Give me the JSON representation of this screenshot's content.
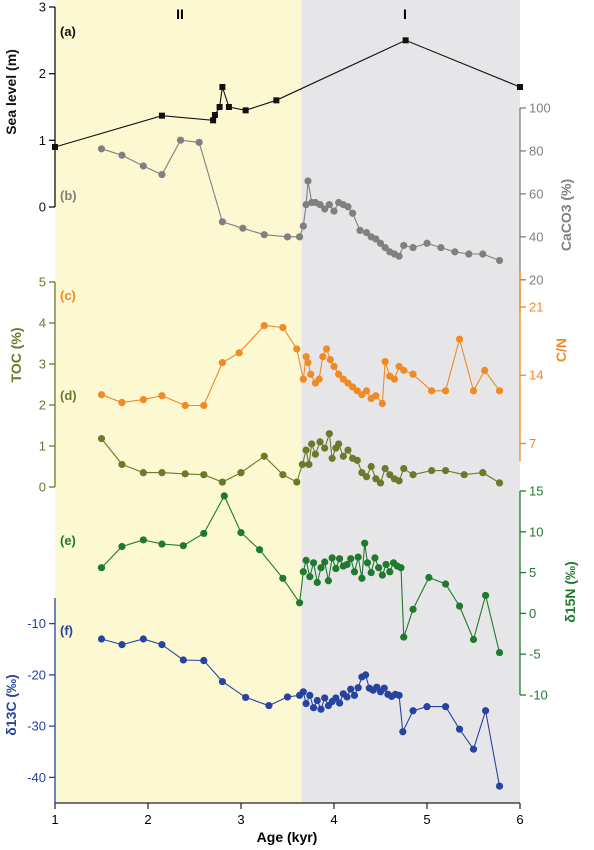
{
  "colors": {
    "zone_II": "#fbf8d2",
    "zone_I": "#e6e6e9",
    "sea_level": "#111111",
    "caco3": "#808080",
    "toc": "#6b7a2a",
    "cn": "#f08a24",
    "d15n": "#1f7a2e",
    "d13c": "#2743a0"
  },
  "chart_data": {
    "type": "line",
    "xlabel": "Age (kyr)",
    "xlim": [
      1,
      6
    ],
    "xticks": [
      "1",
      "2",
      "3",
      "4",
      "5",
      "6"
    ],
    "zones": [
      {
        "label": "II",
        "range": [
          1,
          3.65
        ]
      },
      {
        "label": "I",
        "range": [
          3.65,
          6
        ]
      }
    ],
    "panels": [
      {
        "id": "a",
        "label": "(a)",
        "ylabel": "Sea level (m)",
        "axis_side": "left",
        "ylim": [
          0,
          3
        ],
        "ticks": [
          0,
          1,
          2,
          3
        ],
        "tick_labels": [
          "0",
          "1",
          "2",
          "3"
        ],
        "marker": "square",
        "points": [
          [
            1.0,
            0.9
          ],
          [
            2.15,
            1.37
          ],
          [
            2.7,
            1.3
          ],
          [
            2.72,
            1.38
          ],
          [
            2.77,
            1.5
          ],
          [
            2.8,
            1.8
          ],
          [
            2.87,
            1.5
          ],
          [
            3.05,
            1.45
          ],
          [
            3.38,
            1.6
          ],
          [
            4.77,
            2.5
          ],
          [
            6.0,
            1.8
          ]
        ]
      },
      {
        "id": "b",
        "label": "(b)",
        "ylabel": "CaCO3 (%)",
        "axis_side": "right",
        "ylim": [
          5,
          100
        ],
        "ticks": [
          20,
          40,
          60,
          80,
          100
        ],
        "tick_labels": [
          "20",
          "40",
          "60",
          "80",
          "100"
        ],
        "marker": "circle",
        "points": [
          [
            1.5,
            81
          ],
          [
            1.72,
            78
          ],
          [
            1.95,
            73
          ],
          [
            2.15,
            69
          ],
          [
            2.35,
            85
          ],
          [
            2.55,
            84
          ],
          [
            2.8,
            47
          ],
          [
            3.02,
            44
          ],
          [
            3.25,
            41
          ],
          [
            3.5,
            40
          ],
          [
            3.63,
            40
          ],
          [
            3.67,
            45
          ],
          [
            3.7,
            55
          ],
          [
            3.72,
            66
          ],
          [
            3.76,
            56
          ],
          [
            3.8,
            56
          ],
          [
            3.85,
            55
          ],
          [
            3.9,
            53
          ],
          [
            3.95,
            55
          ],
          [
            4.0,
            52
          ],
          [
            4.05,
            56
          ],
          [
            4.1,
            55
          ],
          [
            4.15,
            54
          ],
          [
            4.2,
            51
          ],
          [
            4.28,
            43
          ],
          [
            4.35,
            42
          ],
          [
            4.4,
            40
          ],
          [
            4.45,
            39
          ],
          [
            4.5,
            37
          ],
          [
            4.55,
            35
          ],
          [
            4.6,
            33
          ],
          [
            4.65,
            32
          ],
          [
            4.7,
            31
          ],
          [
            4.75,
            36
          ],
          [
            4.85,
            35
          ],
          [
            5.0,
            37
          ],
          [
            5.15,
            35
          ],
          [
            5.3,
            33
          ],
          [
            5.45,
            32
          ],
          [
            5.6,
            32
          ],
          [
            5.78,
            29
          ]
        ]
      },
      {
        "id": "c",
        "label": "(c)",
        "ylabel": "C/N",
        "axis_side": "right",
        "ylim": [
          5.2,
          24.8
        ],
        "ticks": [
          7,
          14,
          21
        ],
        "tick_labels": [
          "7",
          "14",
          "21"
        ],
        "marker": "circle",
        "points": [
          [
            1.5,
            12.0
          ],
          [
            1.72,
            11.2
          ],
          [
            1.95,
            11.5
          ],
          [
            2.15,
            11.9
          ],
          [
            2.4,
            10.9
          ],
          [
            2.6,
            10.9
          ],
          [
            2.8,
            15.3
          ],
          [
            2.98,
            16.3
          ],
          [
            3.25,
            19.1
          ],
          [
            3.45,
            18.9
          ],
          [
            3.6,
            16.7
          ],
          [
            3.67,
            13.6
          ],
          [
            3.7,
            15.9
          ],
          [
            3.72,
            15.3
          ],
          [
            3.75,
            14.1
          ],
          [
            3.8,
            13.2
          ],
          [
            3.84,
            13.6
          ],
          [
            3.88,
            15.9
          ],
          [
            3.92,
            16.7
          ],
          [
            3.96,
            15.6
          ],
          [
            4.0,
            14.9
          ],
          [
            4.05,
            14.1
          ],
          [
            4.1,
            13.6
          ],
          [
            4.15,
            13.2
          ],
          [
            4.2,
            12.8
          ],
          [
            4.25,
            12.4
          ],
          [
            4.3,
            12.0
          ],
          [
            4.35,
            12.4
          ],
          [
            4.4,
            11.6
          ],
          [
            4.45,
            11.9
          ],
          [
            4.52,
            11.1
          ],
          [
            4.55,
            15.4
          ],
          [
            4.6,
            13.9
          ],
          [
            4.65,
            13.6
          ],
          [
            4.7,
            14.9
          ],
          [
            4.75,
            14.5
          ],
          [
            4.85,
            14.1
          ],
          [
            5.05,
            12.4
          ],
          [
            5.2,
            12.4
          ],
          [
            5.35,
            17.7
          ],
          [
            5.5,
            12.4
          ],
          [
            5.62,
            14.5
          ],
          [
            5.78,
            12.4
          ]
        ]
      },
      {
        "id": "d",
        "label": "(d)",
        "ylabel": "TOC (%)",
        "axis_side": "left",
        "ylim": [
          0,
          5
        ],
        "ticks": [
          0,
          1,
          2,
          3,
          4,
          5
        ],
        "tick_labels": [
          "0",
          "1",
          "2",
          "3",
          "4",
          "5"
        ],
        "marker": "circle",
        "points": [
          [
            1.5,
            1.18
          ],
          [
            1.72,
            0.55
          ],
          [
            1.95,
            0.35
          ],
          [
            2.15,
            0.35
          ],
          [
            2.4,
            0.32
          ],
          [
            2.6,
            0.3
          ],
          [
            2.8,
            0.12
          ],
          [
            3.0,
            0.35
          ],
          [
            3.25,
            0.75
          ],
          [
            3.45,
            0.3
          ],
          [
            3.6,
            0.12
          ],
          [
            3.66,
            0.55
          ],
          [
            3.7,
            0.9
          ],
          [
            3.73,
            0.55
          ],
          [
            3.76,
            1.05
          ],
          [
            3.8,
            0.8
          ],
          [
            3.85,
            1.1
          ],
          [
            3.9,
            0.95
          ],
          [
            3.95,
            1.3
          ],
          [
            3.98,
            0.7
          ],
          [
            4.02,
            0.95
          ],
          [
            4.05,
            1.05
          ],
          [
            4.1,
            0.75
          ],
          [
            4.15,
            0.9
          ],
          [
            4.2,
            0.7
          ],
          [
            4.25,
            0.65
          ],
          [
            4.3,
            0.35
          ],
          [
            4.35,
            0.25
          ],
          [
            4.4,
            0.5
          ],
          [
            4.45,
            0.2
          ],
          [
            4.5,
            0.1
          ],
          [
            4.55,
            0.45
          ],
          [
            4.6,
            0.3
          ],
          [
            4.65,
            0.2
          ],
          [
            4.7,
            0.15
          ],
          [
            4.75,
            0.45
          ],
          [
            4.85,
            0.3
          ],
          [
            5.05,
            0.4
          ],
          [
            5.2,
            0.4
          ],
          [
            5.4,
            0.3
          ],
          [
            5.6,
            0.35
          ],
          [
            5.78,
            0.1
          ]
        ]
      },
      {
        "id": "e",
        "label": "(e)",
        "ylabel": "δ15N (‰)",
        "axis_side": "right",
        "ylim": [
          -10,
          15
        ],
        "ticks": [
          -10,
          -5,
          0,
          5,
          10,
          15
        ],
        "tick_labels": [
          "-10",
          "-5",
          "0",
          "5",
          "10",
          "15"
        ],
        "marker": "circle",
        "points": [
          [
            1.5,
            5.6
          ],
          [
            1.72,
            8.2
          ],
          [
            1.95,
            9.0
          ],
          [
            2.15,
            8.5
          ],
          [
            2.38,
            8.3
          ],
          [
            2.6,
            9.8
          ],
          [
            2.82,
            14.4
          ],
          [
            3.0,
            9.9
          ],
          [
            3.2,
            7.8
          ],
          [
            3.45,
            4.3
          ],
          [
            3.63,
            1.3
          ],
          [
            3.67,
            5.1
          ],
          [
            3.7,
            6.5
          ],
          [
            3.74,
            4.5
          ],
          [
            3.78,
            6.2
          ],
          [
            3.82,
            3.8
          ],
          [
            3.86,
            5.6
          ],
          [
            3.9,
            6.3
          ],
          [
            3.94,
            4.0
          ],
          [
            3.98,
            6.8
          ],
          [
            4.02,
            5.5
          ],
          [
            4.06,
            6.7
          ],
          [
            4.1,
            5.8
          ],
          [
            4.14,
            6.0
          ],
          [
            4.18,
            6.7
          ],
          [
            4.22,
            5.1
          ],
          [
            4.26,
            6.9
          ],
          [
            4.3,
            4.3
          ],
          [
            4.33,
            8.6
          ],
          [
            4.36,
            6.2
          ],
          [
            4.4,
            5.0
          ],
          [
            4.44,
            6.8
          ],
          [
            4.48,
            5.6
          ],
          [
            4.52,
            4.7
          ],
          [
            4.56,
            6.0
          ],
          [
            4.6,
            5.1
          ],
          [
            4.64,
            6.2
          ],
          [
            4.68,
            5.8
          ],
          [
            4.72,
            5.6
          ],
          [
            4.75,
            -2.9
          ],
          [
            4.85,
            0.5
          ],
          [
            5.02,
            4.4
          ],
          [
            5.2,
            3.6
          ],
          [
            5.35,
            0.9
          ],
          [
            5.5,
            -3.2
          ],
          [
            5.63,
            2.2
          ],
          [
            5.78,
            -4.8
          ]
        ]
      },
      {
        "id": "f",
        "label": "(f)",
        "ylabel": "δ13C (‰)",
        "axis_side": "left",
        "ylim": [
          -45,
          -5
        ],
        "ticks": [
          -10,
          -20,
          -30,
          -40
        ],
        "tick_labels": [
          "-10",
          "-20",
          "-30",
          "-40"
        ],
        "marker": "circle",
        "points": [
          [
            1.5,
            -13.0
          ],
          [
            1.72,
            -14.1
          ],
          [
            1.95,
            -13.0
          ],
          [
            2.15,
            -14.1
          ],
          [
            2.38,
            -17.1
          ],
          [
            2.6,
            -17.2
          ],
          [
            2.8,
            -21.3
          ],
          [
            3.05,
            -24.4
          ],
          [
            3.3,
            -26.0
          ],
          [
            3.5,
            -24.3
          ],
          [
            3.63,
            -24.0
          ],
          [
            3.67,
            -23.3
          ],
          [
            3.7,
            -25.6
          ],
          [
            3.74,
            -24.0
          ],
          [
            3.78,
            -26.4
          ],
          [
            3.82,
            -25.0
          ],
          [
            3.86,
            -26.7
          ],
          [
            3.9,
            -24.5
          ],
          [
            3.94,
            -26.0
          ],
          [
            3.98,
            -25.2
          ],
          [
            4.02,
            -24.5
          ],
          [
            4.06,
            -25.5
          ],
          [
            4.1,
            -23.7
          ],
          [
            4.14,
            -24.3
          ],
          [
            4.18,
            -22.8
          ],
          [
            4.22,
            -24.0
          ],
          [
            4.26,
            -22.5
          ],
          [
            4.3,
            -20.4
          ],
          [
            4.34,
            -20.0
          ],
          [
            4.38,
            -22.6
          ],
          [
            4.42,
            -23.0
          ],
          [
            4.46,
            -22.4
          ],
          [
            4.5,
            -23.3
          ],
          [
            4.54,
            -22.6
          ],
          [
            4.58,
            -23.8
          ],
          [
            4.62,
            -24.2
          ],
          [
            4.66,
            -23.8
          ],
          [
            4.7,
            -24.0
          ],
          [
            4.74,
            -31.1
          ],
          [
            4.85,
            -27.0
          ],
          [
            5.0,
            -26.2
          ],
          [
            5.2,
            -26.2
          ],
          [
            5.35,
            -30.6
          ],
          [
            5.5,
            -34.5
          ],
          [
            5.63,
            -27.0
          ],
          [
            5.78,
            -41.7
          ]
        ]
      }
    ]
  }
}
